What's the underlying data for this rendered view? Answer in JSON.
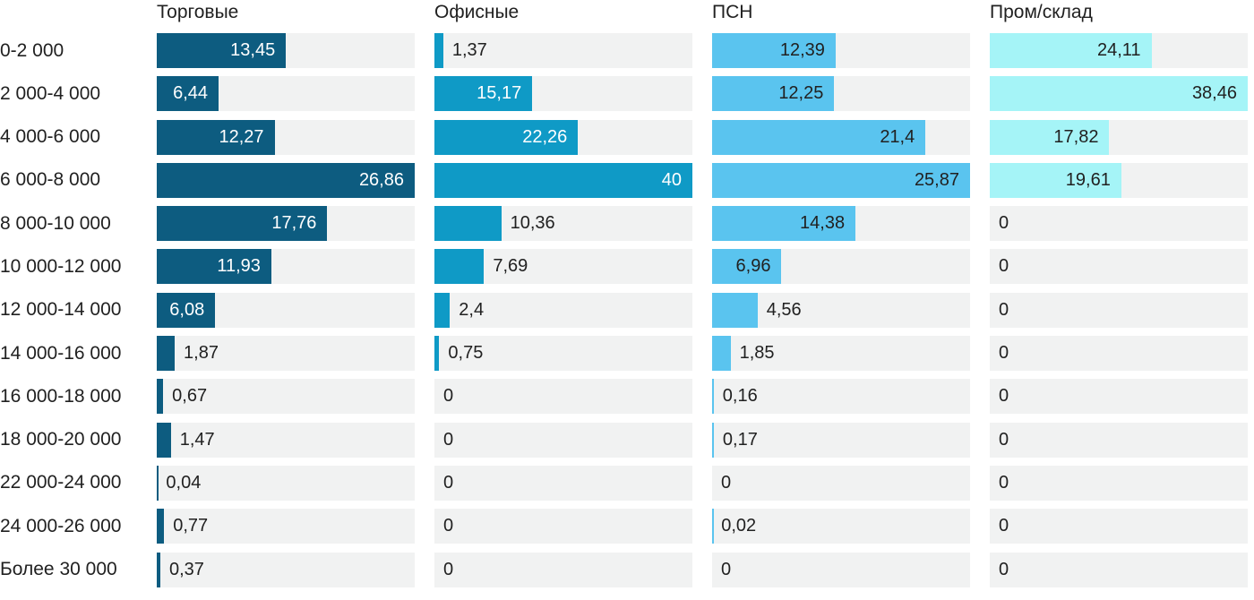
{
  "chart_data": {
    "type": "bar",
    "orientation": "horizontal",
    "layout": "small-multiples; one panel per series; each panel's bars scaled to that panel's max value; value labels inside bar end when they fit, otherwise outside right of fill",
    "title": "",
    "xlabel": "",
    "ylabel": "",
    "grid": false,
    "legend_position": "column-headers-top",
    "value_decimal_separator": ",",
    "track_color": "#f1f2f2",
    "text_color": "#212121",
    "background_color": "#ffffff",
    "categories": [
      "0-2 000",
      "2 000-4 000",
      "4 000-6 000",
      "6 000-8 000",
      "8 000-10 000",
      "10 000-12 000",
      "12 000-14 000",
      "14 000-16 000",
      "16 000-18 000",
      "18 000-20 000",
      "22 000-24 000",
      "24 000-26 000",
      "Более 30 000"
    ],
    "series": [
      {
        "name": "Торговые",
        "color": "#0d5c80",
        "inside_label_color": "#ffffff",
        "axis_max": 26.86,
        "values": [
          13.45,
          6.44,
          12.27,
          26.86,
          17.76,
          11.93,
          6.08,
          1.87,
          0.67,
          1.47,
          0.04,
          0.77,
          0.37
        ],
        "display_values": [
          "13,45",
          "6,44",
          "12,27",
          "26,86",
          "17,76",
          "11,93",
          "6,08",
          "1,87",
          "0,67",
          "1,47",
          "0,04",
          "0,77",
          "0,37"
        ]
      },
      {
        "name": "Офисные",
        "color": "#0f9ac6",
        "inside_label_color": "#ffffff",
        "axis_max": 40,
        "values": [
          1.37,
          15.17,
          22.26,
          40,
          10.36,
          7.69,
          2.4,
          0.75,
          0,
          0,
          0,
          0,
          0
        ],
        "display_values": [
          "1,37",
          "15,17",
          "22,26",
          "40",
          "10,36",
          "7,69",
          "2,4",
          "0,75",
          "0",
          "0",
          "0",
          "0",
          "0"
        ]
      },
      {
        "name": "ПСН",
        "color": "#5ac4ef",
        "inside_label_color": "#212121",
        "axis_max": 25.87,
        "values": [
          12.39,
          12.25,
          21.4,
          25.87,
          14.38,
          6.96,
          4.56,
          1.85,
          0.16,
          0.17,
          0,
          0.02,
          0
        ],
        "display_values": [
          "12,39",
          "12,25",
          "21,4",
          "25,87",
          "14,38",
          "6,96",
          "4,56",
          "1,85",
          "0,16",
          "0,17",
          "0",
          "0,02",
          "0"
        ]
      },
      {
        "name": "Пром/склад",
        "color": "#a5f4f7",
        "inside_label_color": "#212121",
        "axis_max": 38.46,
        "values": [
          24.11,
          38.46,
          17.82,
          19.61,
          0,
          0,
          0,
          0,
          0,
          0,
          0,
          0,
          0
        ],
        "display_values": [
          "24,11",
          "38,46",
          "17,82",
          "19,61",
          "0",
          "0",
          "0",
          "0",
          "0",
          "0",
          "0",
          "0",
          "0"
        ]
      }
    ]
  }
}
